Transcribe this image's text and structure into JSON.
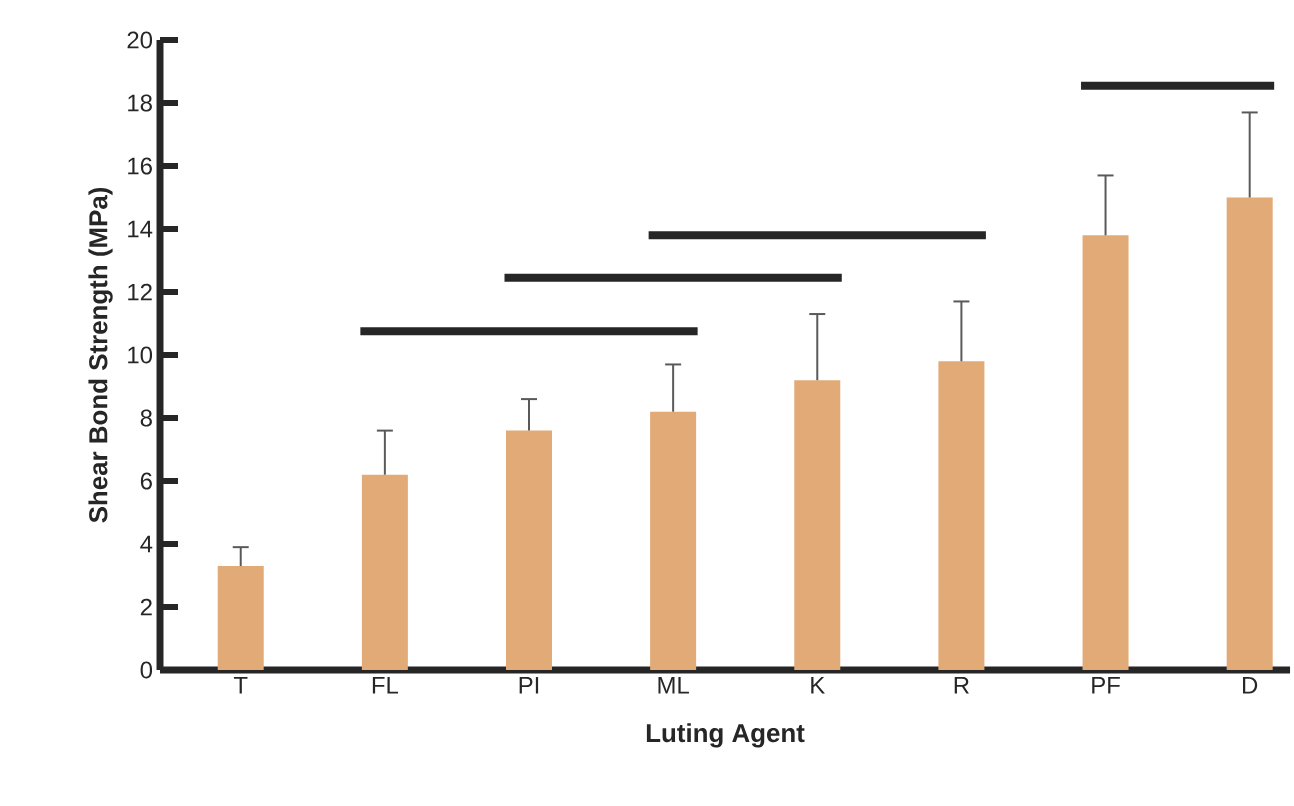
{
  "chart_data": {
    "type": "bar",
    "xlabel": "Luting Agent",
    "ylabel": "Shear Bond Strength (MPa)",
    "categories": [
      "T",
      "FL",
      "PI",
      "ML",
      "K",
      "R",
      "PF",
      "D"
    ],
    "values": [
      3.3,
      6.2,
      7.6,
      8.2,
      9.2,
      9.8,
      13.8,
      15.0
    ],
    "errors": [
      0.6,
      1.4,
      1.0,
      1.5,
      2.1,
      1.9,
      1.9,
      2.7
    ],
    "color": "#e2aa76",
    "ylim": [
      0,
      20
    ],
    "yticks": [
      0,
      2,
      4,
      6,
      8,
      10,
      12,
      14,
      16,
      18,
      20
    ]
  }
}
